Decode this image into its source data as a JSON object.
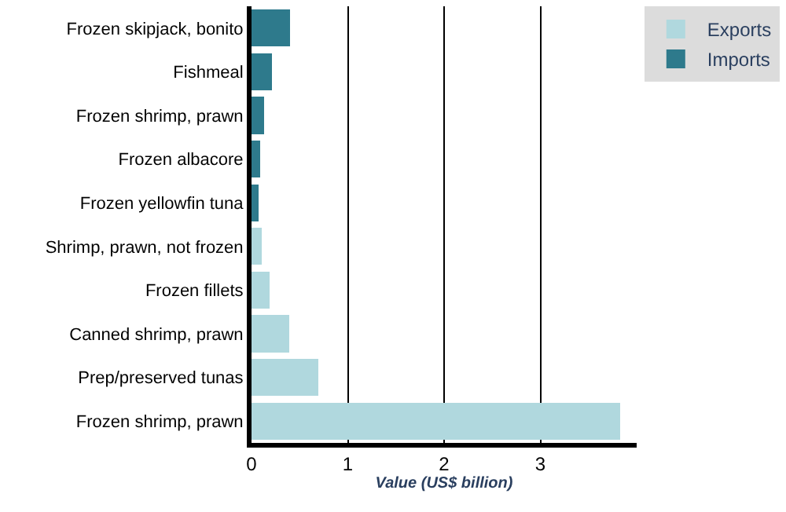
{
  "chart_data": {
    "type": "bar",
    "orientation": "horizontal",
    "stacked": true,
    "categories": [
      "Frozen skipjack, bonito",
      "Fishmeal",
      "Frozen shrimp, prawn",
      "Frozen albacore",
      "Frozen yellowfin tuna",
      "Shrimp, prawn, not frozen",
      "Frozen fillets",
      "Canned shrimp, prawn",
      "Prep/preserved tunas",
      "Frozen shrimp, prawn"
    ],
    "series": [
      {
        "name": "Imports",
        "color": "#2e7a8c",
        "values": [
          0.4,
          0.21,
          0.13,
          0.09,
          0.07,
          null,
          null,
          null,
          null,
          null
        ]
      },
      {
        "name": "Exports",
        "color": "#b0d8de",
        "values": [
          null,
          null,
          null,
          null,
          null,
          0.11,
          0.19,
          0.39,
          0.69,
          3.83
        ]
      }
    ],
    "xlabel": "Value (US$ billion)",
    "xlim": [
      0,
      4.0
    ],
    "xticks": [
      0,
      1,
      2,
      3
    ],
    "grid": "x",
    "legend": "top right"
  }
}
